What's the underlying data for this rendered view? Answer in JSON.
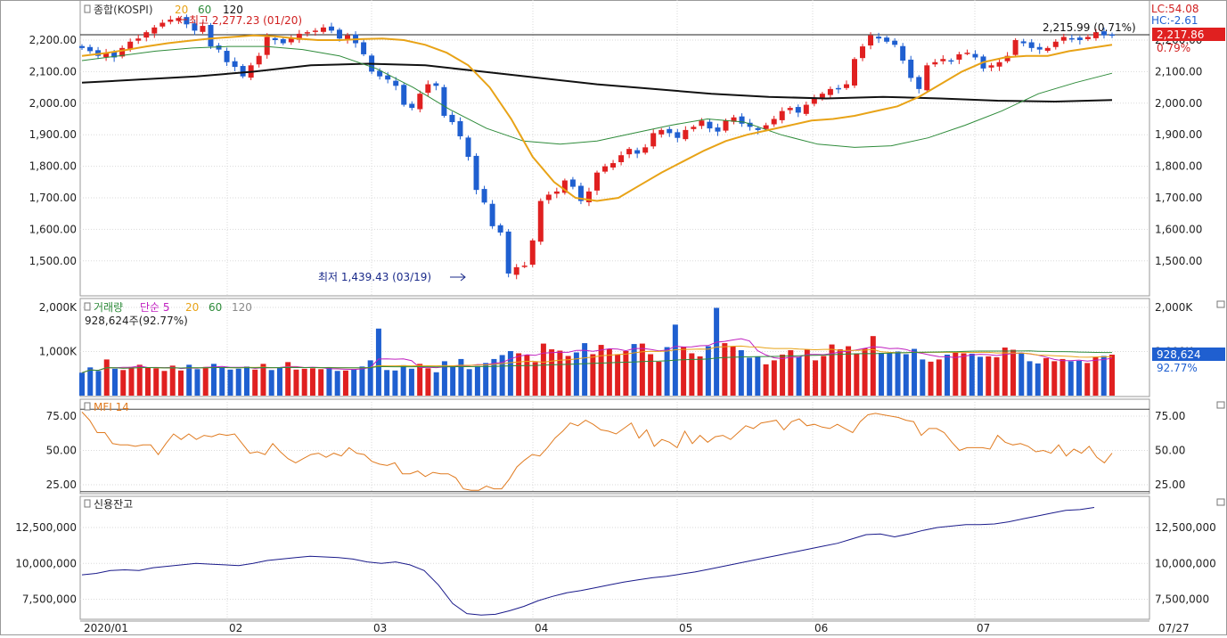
{
  "price_panel": {
    "title": "종합(KOSPI)",
    "ma_labels": [
      {
        "text": "20",
        "color": "#e8a317"
      },
      {
        "text": "60",
        "color": "#2e8b3a"
      },
      {
        "text": "120",
        "color": "#111111"
      }
    ],
    "high_label": "최고 2,277.23 (01/20)",
    "low_label": "최저 1,439.43 (03/19)",
    "last_label": "2,215.99 (0.71%)",
    "lc_label": "LC:54.08",
    "hc_label": "HC:-2.61",
    "price_box": "2,217.86",
    "pct_label": "0.79%",
    "y_ticks": [
      "2,200.00",
      "2,100.00",
      "2,000.00",
      "1,900.00",
      "1,800.00",
      "1,700.00",
      "1,600.00",
      "1,500.00"
    ]
  },
  "volume_panel": {
    "title": "거래량",
    "sub_label": "단순 5",
    "ma_labels": [
      {
        "text": "20",
        "color": "#e8a317"
      },
      {
        "text": "60",
        "color": "#2e8b3a"
      },
      {
        "text": "120",
        "color": "#888888"
      }
    ],
    "value_label": "928,624주(92.77%)",
    "box_value": "928,624",
    "box_pct": "92.77%",
    "y_ticks": [
      "2,000K",
      "1,000K"
    ]
  },
  "mfi_panel": {
    "title": "MFI 14",
    "y_ticks": [
      "75.00",
      "50.00",
      "25.00"
    ]
  },
  "credit_panel": {
    "title": "신용잔고",
    "y_ticks": [
      "12,500,000",
      "10,000,000",
      "7,500,000"
    ]
  },
  "x_axis": {
    "labels": [
      "2020/01",
      "02",
      "03",
      "04",
      "05",
      "06",
      "07"
    ],
    "last_date": "07/27"
  },
  "chart_data": [
    {
      "type": "candlestick",
      "title": "종합(KOSPI)",
      "ylim": [
        1400,
        2300
      ],
      "up_color": "#e02020",
      "down_color": "#1f5fd0",
      "candles_close": [
        2175,
        2165,
        2150,
        2160,
        2145,
        2175,
        2195,
        2205,
        2225,
        2240,
        2255,
        2265,
        2270,
        2250,
        2230,
        2245,
        2180,
        2170,
        2130,
        2115,
        2085,
        2120,
        2150,
        2210,
        2200,
        2190,
        2205,
        2220,
        2225,
        2230,
        2240,
        2230,
        2205,
        2215,
        2190,
        2155,
        2100,
        2085,
        2075,
        2055,
        1995,
        1985,
        2030,
        2060,
        2055,
        1960,
        1940,
        1895,
        1830,
        1725,
        1685,
        1610,
        1590,
        1460,
        1480,
        1485,
        1565,
        1690,
        1710,
        1720,
        1755,
        1735,
        1690,
        1720,
        1780,
        1800,
        1810,
        1835,
        1855,
        1840,
        1860,
        1905,
        1915,
        1905,
        1890,
        1915,
        1925,
        1945,
        1920,
        1910,
        1945,
        1955,
        1935,
        1925,
        1915,
        1930,
        1950,
        1975,
        1985,
        1970,
        1995,
        2015,
        2030,
        2045,
        2045,
        2060,
        2140,
        2180,
        2215,
        2205,
        2195,
        2185,
        2135,
        2080,
        2045,
        2120,
        2130,
        2140,
        2135,
        2155,
        2160,
        2145,
        2110,
        2120,
        2130,
        2150,
        2200,
        2190,
        2175,
        2170,
        2175,
        2195,
        2210,
        2205,
        2200,
        2210,
        2225,
        2215,
        2217.86
      ],
      "ma20": [
        2150,
        2158,
        2168,
        2180,
        2190,
        2198,
        2205,
        2210,
        2215,
        2212,
        2205,
        2200,
        2200,
        2203,
        2205,
        2200,
        2185,
        2160,
        2120,
        2050,
        1950,
        1830,
        1750,
        1700,
        1690,
        1700,
        1740,
        1780,
        1815,
        1850,
        1880,
        1900,
        1915,
        1930,
        1945,
        1950,
        1960,
        1975,
        1990,
        2020,
        2060,
        2100,
        2130,
        2145,
        2150,
        2150,
        2165,
        2175,
        2185
      ],
      "ma60": [
        2135,
        2150,
        2165,
        2175,
        2180,
        2180,
        2170,
        2150,
        2110,
        2050,
        1980,
        1920,
        1880,
        1870,
        1880,
        1905,
        1930,
        1950,
        1940,
        1900,
        1870,
        1860,
        1865,
        1890,
        1930,
        1975,
        2030,
        2065,
        2095
      ],
      "ma120": [
        2065,
        2075,
        2085,
        2100,
        2120,
        2125,
        2120,
        2100,
        2080,
        2060,
        2045,
        2030,
        2020,
        2015,
        2020,
        2015,
        2008,
        2005,
        2010
      ]
    },
    {
      "type": "bar",
      "title": "거래량",
      "ylim": [
        0,
        2000000
      ],
      "values_k": [
        520,
        640,
        560,
        820,
        610,
        580,
        650,
        700,
        640,
        620,
        560,
        680,
        570,
        700,
        600,
        650,
        720,
        640,
        590,
        610,
        660,
        590,
        720,
        580,
        640,
        760,
        590,
        610,
        620,
        600,
        640,
        560,
        570,
        600,
        660,
        800,
        1520,
        580,
        570,
        690,
        610,
        720,
        620,
        530,
        780,
        650,
        830,
        600,
        670,
        740,
        830,
        920,
        1010,
        960,
        920,
        760,
        1180,
        1050,
        1020,
        900,
        980,
        1190,
        940,
        1150,
        1050,
        940,
        1010,
        1170,
        1180,
        940,
        770,
        1100,
        1610,
        1100,
        960,
        890,
        1120,
        1990,
        1190,
        1120,
        1030,
        860,
        890,
        710,
        800,
        930,
        1030,
        880,
        1040,
        800,
        900,
        1160,
        1050,
        1120,
        960,
        1070,
        1350,
        970,
        970,
        1000,
        940,
        1060,
        820,
        770,
        820,
        930,
        970,
        960,
        950,
        880,
        890,
        870,
        1090,
        1040,
        960,
        780,
        730,
        850,
        780,
        830,
        780,
        790,
        740,
        880,
        900,
        928
      ]
    },
    {
      "type": "line",
      "title": "MFI 14",
      "ylim": [
        17,
        82
      ],
      "values": [
        78,
        72,
        63,
        63,
        55,
        54,
        54,
        53,
        54,
        54,
        47,
        55,
        62,
        58,
        62,
        58,
        61,
        60,
        62,
        61,
        62,
        55,
        48,
        49,
        47,
        55,
        49,
        44,
        41,
        44,
        47,
        48,
        45,
        48,
        46,
        52,
        48,
        47,
        42,
        40,
        39,
        41,
        33,
        33,
        35,
        31,
        34,
        33,
        33,
        30,
        22,
        20,
        21,
        24,
        22,
        22,
        29,
        38,
        43,
        47,
        46,
        52,
        59,
        64,
        70,
        68,
        72,
        69,
        65,
        64,
        62,
        66,
        70,
        59,
        65,
        53,
        58,
        56,
        52,
        64,
        55,
        61,
        56,
        60,
        61,
        58,
        63,
        68,
        66,
        70,
        71,
        72,
        65,
        71,
        73,
        68,
        69,
        67,
        66,
        69,
        66,
        63,
        71,
        76,
        77,
        76,
        75,
        74,
        72,
        71,
        61,
        66,
        66,
        63,
        56,
        50,
        52,
        52,
        52,
        51,
        61,
        56,
        54,
        55,
        53,
        49,
        50,
        48,
        54,
        46,
        51,
        48,
        53,
        45,
        41,
        48
      ]
    },
    {
      "type": "line",
      "title": "신용잔고",
      "ylim": [
        6200000,
        14500000
      ],
      "values": [
        9200000,
        9300000,
        9500000,
        9550000,
        9500000,
        9700000,
        9800000,
        9900000,
        10000000,
        9950000,
        9900000,
        9850000,
        10000000,
        10200000,
        10300000,
        10400000,
        10500000,
        10450000,
        10400000,
        10300000,
        10100000,
        10000000,
        10100000,
        9900000,
        9500000,
        8500000,
        7200000,
        6500000,
        6400000,
        6450000,
        6700000,
        7000000,
        7400000,
        7700000,
        7950000,
        8100000,
        8300000,
        8500000,
        8700000,
        8850000,
        9000000,
        9100000,
        9250000,
        9400000,
        9600000,
        9800000,
        10000000,
        10200000,
        10400000,
        10600000,
        10800000,
        11000000,
        11200000,
        11400000,
        11700000,
        12000000,
        12050000,
        11850000,
        12050000,
        12300000,
        12500000,
        12600000,
        12700000,
        12700000,
        12750000,
        12900000,
        13100000,
        13300000,
        13500000,
        13700000,
        13750000,
        13900000
      ]
    }
  ]
}
